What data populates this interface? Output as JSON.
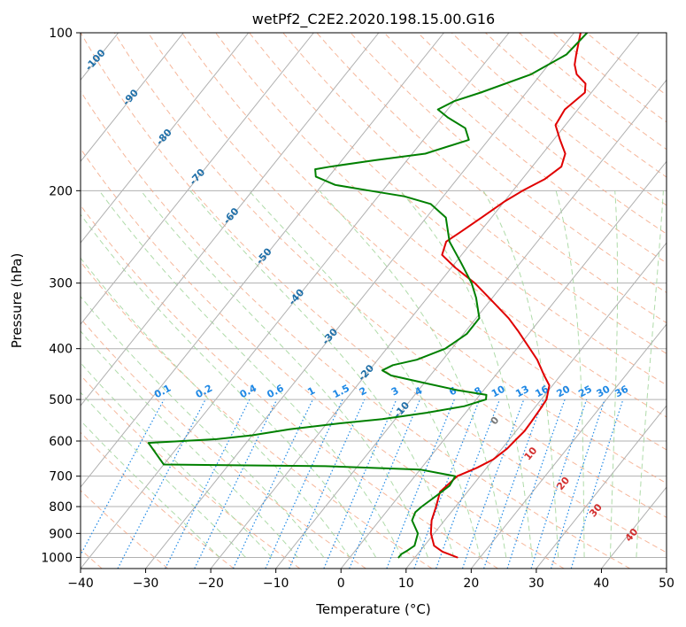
{
  "chart_data": {
    "type": "line",
    "subtype": "skew-T log-P diagram",
    "title": "wetPf2_C2E2.2020.198.15.00.G16",
    "xlabel": "Temperature (°C)",
    "ylabel": "Pressure (hPa)",
    "xlim": [
      -40,
      50
    ],
    "ylim_pressure": [
      1050,
      100
    ],
    "y_scale": "log",
    "grid": true,
    "x_ticks": [
      -40,
      -30,
      -20,
      -10,
      0,
      10,
      20,
      30,
      40,
      50
    ],
    "x_tick_labels": [
      "−40",
      "−30",
      "−20",
      "−10",
      "0",
      "10",
      "20",
      "30",
      "40",
      "50"
    ],
    "y_ticks": [
      100,
      200,
      300,
      400,
      500,
      600,
      700,
      800,
      900,
      1000
    ],
    "y_tick_labels": [
      "100",
      "200",
      "300",
      "400",
      "500",
      "600",
      "700",
      "800",
      "900",
      "1000"
    ],
    "series": [
      {
        "role": "temperature",
        "color": "#e00000",
        "points": [
          [
            1000,
            16.5
          ],
          [
            975,
            13.5
          ],
          [
            950,
            11.5
          ],
          [
            900,
            9.5
          ],
          [
            850,
            8.0
          ],
          [
            800,
            7.0
          ],
          [
            750,
            5.8
          ],
          [
            700,
            6.5
          ],
          [
            675,
            8.5
          ],
          [
            650,
            10.0
          ],
          [
            620,
            10.8
          ],
          [
            600,
            11.0
          ],
          [
            575,
            11.3
          ],
          [
            550,
            11.2
          ],
          [
            520,
            11.0
          ],
          [
            500,
            10.8
          ],
          [
            470,
            9.5
          ],
          [
            450,
            7.5
          ],
          [
            420,
            4.5
          ],
          [
            400,
            2.0
          ],
          [
            370,
            -2.0
          ],
          [
            350,
            -5.0
          ],
          [
            320,
            -10.5
          ],
          [
            300,
            -14.5
          ],
          [
            280,
            -19.5
          ],
          [
            265,
            -23.0
          ],
          [
            250,
            -24.0
          ],
          [
            240,
            -23.0
          ],
          [
            225,
            -21.5
          ],
          [
            210,
            -20.0
          ],
          [
            200,
            -18.5
          ],
          [
            190,
            -16.5
          ],
          [
            180,
            -15.5
          ],
          [
            170,
            -16.5
          ],
          [
            160,
            -19.0
          ],
          [
            150,
            -21.5
          ],
          [
            140,
            -22.0
          ],
          [
            130,
            -21.0
          ],
          [
            125,
            -22.0
          ],
          [
            120,
            -24.5
          ],
          [
            115,
            -26.0
          ],
          [
            110,
            -27.0
          ],
          [
            100,
            -29.0
          ]
        ]
      },
      {
        "role": "dewpoint",
        "color": "#008000",
        "points": [
          [
            1000,
            7.5
          ],
          [
            985,
            7.5
          ],
          [
            970,
            8.0
          ],
          [
            950,
            8.5
          ],
          [
            900,
            7.5
          ],
          [
            850,
            5.0
          ],
          [
            820,
            4.5
          ],
          [
            800,
            4.8
          ],
          [
            760,
            5.8
          ],
          [
            730,
            6.5
          ],
          [
            700,
            6.2
          ],
          [
            680,
            0.0
          ],
          [
            670,
            -15.0
          ],
          [
            665,
            -40.0
          ],
          [
            605,
            -45.0
          ],
          [
            595,
            -35.0
          ],
          [
            585,
            -30.0
          ],
          [
            570,
            -25.0
          ],
          [
            555,
            -18.0
          ],
          [
            545,
            -12.0
          ],
          [
            530,
            -6.0
          ],
          [
            515,
            -1.0
          ],
          [
            500,
            1.5
          ],
          [
            490,
            1.0
          ],
          [
            480,
            -4.0
          ],
          [
            465,
            -10.0
          ],
          [
            450,
            -16.0
          ],
          [
            440,
            -18.0
          ],
          [
            430,
            -17.0
          ],
          [
            420,
            -14.0
          ],
          [
            400,
            -11.0
          ],
          [
            375,
            -9.5
          ],
          [
            350,
            -9.5
          ],
          [
            320,
            -12.5
          ],
          [
            300,
            -15.0
          ],
          [
            275,
            -19.0
          ],
          [
            250,
            -23.5
          ],
          [
            225,
            -27.0
          ],
          [
            212,
            -31.0
          ],
          [
            205,
            -36.0
          ],
          [
            200,
            -42.0
          ],
          [
            195,
            -48.0
          ],
          [
            188,
            -52.0
          ],
          [
            182,
            -53.0
          ],
          [
            180,
            -51.0
          ],
          [
            175,
            -45.0
          ],
          [
            170,
            -38.0
          ],
          [
            160,
            -33.0
          ],
          [
            152,
            -35.0
          ],
          [
            145,
            -39.0
          ],
          [
            140,
            -41.5
          ],
          [
            135,
            -40.0
          ],
          [
            130,
            -37.0
          ],
          [
            120,
            -31.5
          ],
          [
            110,
            -28.5
          ],
          [
            100,
            -28.0
          ]
        ]
      }
    ],
    "isotherm_labels": [
      "-100",
      "-90",
      "-80",
      "-70",
      "-60",
      "-50",
      "-40",
      "-30",
      "-20",
      "-10"
    ],
    "mixing_ratio_labels": [
      "0.1",
      "0.2",
      "0.4",
      "0.6",
      "1",
      "1.5",
      "2",
      "3",
      "4",
      "6",
      "8",
      "10",
      "13",
      "16",
      "20",
      "25",
      "30",
      "36"
    ],
    "mixing_ratio_values": [
      0.1,
      0.2,
      0.4,
      0.6,
      1,
      1.5,
      2,
      3,
      4,
      6,
      8,
      10,
      13,
      16,
      20,
      25,
      30,
      36
    ],
    "moist_adiabat_labels": [
      "0",
      "10",
      "20",
      "30",
      "40"
    ],
    "colors": {
      "temperature": "#e00000",
      "dewpoint": "#008000",
      "isotherm_labels": "#1f6fa8",
      "mixing_ratio": "#1e88e5",
      "moist_label_0": "#777777",
      "moist_labels": "#d32f2f",
      "dry_adiabat": "#f4a582",
      "moist_adiabat": "#a6d7a0",
      "grid": "#b0b0b0"
    }
  }
}
